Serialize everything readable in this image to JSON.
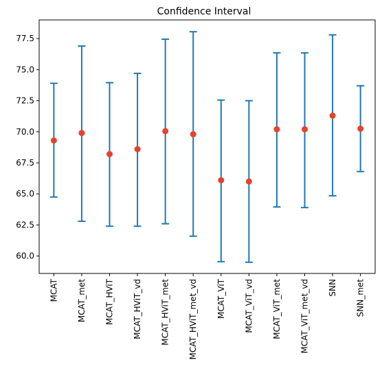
{
  "chart_data": {
    "type": "scatter",
    "title": "Confidence Interval",
    "xlabel": "",
    "ylabel": "",
    "categories": [
      "MCAT",
      "MCAT_met",
      "MCAT_HViT",
      "MCAT_HViT_vd",
      "MCAT_HViT_met",
      "MCAT_HViT_met_vd",
      "MCAT_ViT",
      "MCAT_ViT_vd",
      "MCAT_ViT_met",
      "MCAT_ViT_met_vd",
      "SNN",
      "SNN_met"
    ],
    "means": [
      69.3,
      69.9,
      68.2,
      68.6,
      70.05,
      69.8,
      66.1,
      66.0,
      70.2,
      70.2,
      71.3,
      70.25
    ],
    "lower": [
      64.75,
      62.8,
      62.4,
      62.4,
      62.6,
      61.6,
      59.55,
      59.5,
      63.95,
      63.9,
      64.85,
      66.8
    ],
    "upper": [
      73.9,
      76.9,
      73.95,
      74.7,
      77.45,
      78.05,
      72.55,
      72.5,
      76.35,
      76.35,
      77.8,
      73.7
    ],
    "yticks": [
      "60.0",
      "62.5",
      "65.0",
      "67.5",
      "70.0",
      "72.5",
      "75.0",
      "77.5"
    ],
    "ylim": [
      58.6,
      79.0
    ],
    "grid": false,
    "colors": {
      "errorbar": "#1f77b4",
      "marker": "#e8412c"
    }
  }
}
